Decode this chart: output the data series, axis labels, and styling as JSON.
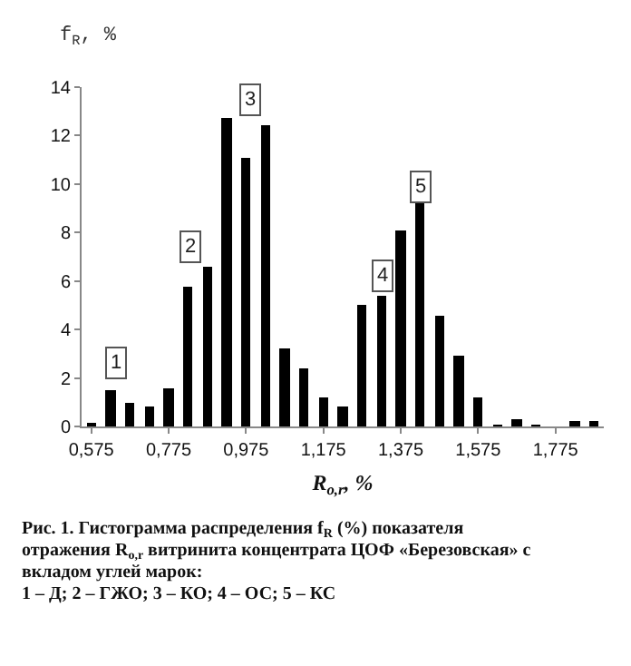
{
  "chart_data": {
    "type": "bar",
    "color": "#000000",
    "x": [
      0.575,
      0.625,
      0.675,
      0.725,
      0.775,
      0.825,
      0.875,
      0.925,
      0.975,
      1.025,
      1.075,
      1.125,
      1.175,
      1.225,
      1.275,
      1.325,
      1.375,
      1.425,
      1.475,
      1.525,
      1.575,
      1.625,
      1.675,
      1.725,
      1.775,
      1.825,
      1.875
    ],
    "values": [
      0.1,
      1.5,
      1.0,
      0.8,
      1.6,
      5.8,
      6.6,
      12.7,
      11.1,
      12.4,
      3.2,
      2.4,
      1.2,
      0.8,
      5.0,
      5.4,
      8.1,
      9.2,
      4.6,
      2.9,
      1.2,
      0.05,
      0.3,
      0.05,
      0.0,
      0.2,
      0.2
    ],
    "xlim": [
      0.55,
      1.9
    ],
    "xticks": [
      {
        "value": 0.575,
        "label": "0,575"
      },
      {
        "value": 0.775,
        "label": "0,775"
      },
      {
        "value": 0.975,
        "label": "0,975"
      },
      {
        "value": 1.175,
        "label": "1,175"
      },
      {
        "value": 1.375,
        "label": "1,375"
      },
      {
        "value": 1.575,
        "label": "1,575"
      },
      {
        "value": 1.775,
        "label": "1,775"
      }
    ],
    "ylim": [
      0,
      14
    ],
    "yticks": [
      0,
      2,
      4,
      6,
      8,
      10,
      12,
      14
    ],
    "xlabel": "R$_{o,r}$, %",
    "ylabel": "f$_{R}$, %",
    "annotations": [
      {
        "text": "1",
        "x": 0.64,
        "y": 2.6
      },
      {
        "text": "2",
        "x": 0.83,
        "y": 7.4
      },
      {
        "text": "3",
        "x": 0.985,
        "y": 13.5
      },
      {
        "text": "4",
        "x": 1.33,
        "y": 6.2
      },
      {
        "text": "5",
        "x": 1.425,
        "y": 9.9
      },
      "Рис. 1. Гистограмма распределения f$_{R}$ (%) показателя отражения R$_{o,r}$ витринита концентрата ЦОФ «Березовская» с вкладом углей марок:",
      "1 – Д; 2 – ГЖО; 3 – КО; 4 – ОС; 5 – КС"
    ]
  }
}
